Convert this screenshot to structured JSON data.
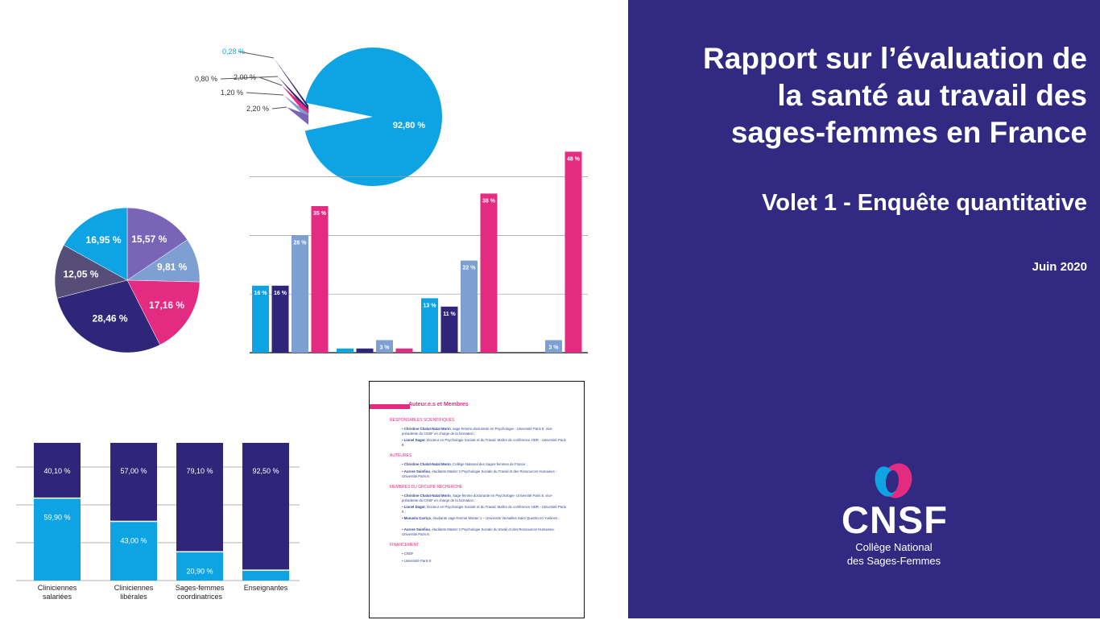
{
  "cover": {
    "title_lines": [
      "Rapport sur l’évaluation de",
      "la santé au travail des",
      "sages-femmes en France"
    ],
    "subtitle": "Volet 1 - Enquête quantitative",
    "date": "Juin 2020"
  },
  "logo": {
    "acronym": "CNSF",
    "name_line1": "Collège National",
    "name_line2": "des Sages-Femmes"
  },
  "colors": {
    "cover_bg": "#322983",
    "cyan": "#0ea4e4",
    "navy": "#2f2679",
    "light_blue": "#7d9fd2",
    "pink": "#e32b82",
    "purple": "#7a64b8",
    "slate": "#574e78"
  },
  "chart_data": [
    {
      "type": "pie",
      "labels": [
        "92,80 %",
        "0,28 %",
        "0,80 %",
        "2,00 %",
        "1,20 %",
        "2,20 %"
      ],
      "values": [
        92.8,
        0.28,
        0.8,
        2.0,
        1.2,
        2.2
      ]
    },
    {
      "type": "pie",
      "labels": [
        "15,57 %",
        "9,81 %",
        "17,16 %",
        "28,46 %",
        "12,05 %",
        "16,95 %"
      ],
      "values": [
        15.57,
        9.81,
        17.16,
        28.46,
        12.05,
        16.95
      ]
    },
    {
      "type": "bar",
      "groups": 4,
      "series": [
        {
          "values": [
            16,
            1,
            13,
            null
          ],
          "labels": [
            "16 %",
            "1 %",
            "13 %",
            ""
          ]
        },
        {
          "values": [
            16,
            1,
            11,
            null
          ],
          "labels": [
            "16 %",
            "1 %",
            "11 %",
            ""
          ]
        },
        {
          "values": [
            28,
            3,
            22,
            3
          ],
          "labels": [
            "28 %",
            "3 %",
            "22 %",
            "3 %"
          ]
        },
        {
          "values": [
            35,
            1,
            38,
            48
          ],
          "labels": [
            "35 %",
            "1 %",
            "38 %",
            "48 %"
          ]
        }
      ],
      "ylim": [
        0,
        50
      ]
    },
    {
      "type": "bar",
      "stacked": true,
      "categories": [
        [
          "Cliniciennes",
          "salariées"
        ],
        [
          "Cliniciennes",
          "libérales"
        ],
        [
          "Sages-femmes",
          "coordinatrices"
        ],
        [
          "Enseignantes"
        ]
      ],
      "series": [
        {
          "values": [
            59.9,
            43.0,
            20.9,
            7.5
          ],
          "labels": [
            "59,90 %",
            "43,00 %",
            "20,90 %",
            "7,50 %"
          ]
        },
        {
          "values": [
            40.1,
            57.0,
            79.1,
            92.5
          ],
          "labels": [
            "40,10 %",
            "57,00 %",
            "79,10 %",
            "92,50 %"
          ]
        }
      ]
    }
  ],
  "document": {
    "heading": "Auteur.e.s et Membres",
    "sections": [
      {
        "title": "Responsables scientifiques",
        "items": [
          [
            "Christine Chalut-Natal Morin",
            ", sage-femme doctorante en Psychologie - Université Paris 8, vice-présidente du CNSF en charge de la formation ;"
          ],
          [
            "Lionel Dagot",
            ", Docteur en Psychologie Sociale et du Travail, Maître de conférence HDR - Université Paris 8."
          ]
        ]
      },
      {
        "title": "Auteures",
        "items": [
          [
            "Christine Chalut-Natal Morin",
            ", Collège National des Sages-femmes de France ;"
          ],
          [
            "Aurore Sainfiou",
            ", étudiante Master 2 Psychologie Sociale du Travail et des Ressources Humaines - Université Paris 8."
          ]
        ]
      },
      {
        "title": "Membres du groupe recherche",
        "items": [
          [
            "Christine Chalut-Natal Morin",
            ", Sage-femme doctorante en Psychologie- Université Paris 8, vice-présidente du CNSF en charge de la formation ;"
          ],
          [
            "Lionel Dagot",
            ", Docteur en Psychologie Sociale et du Travail, Maître de conférence HDR - Université Paris 8 ;"
          ],
          [
            "Manuela Carriço",
            ", étudiante sage-femme Master 1 – Université Versailles Saint Quentin en Yvelines ;"
          ],
          [
            "Aurore Sainfiou",
            ", étudiante Master 2 Psychologie    Sociale du travail et des Ressources Humaines- Université Paris 8."
          ]
        ]
      },
      {
        "title": "Financement",
        "items": [
          [
            "",
            "CNSF"
          ],
          [
            "",
            "Université Paris 8"
          ]
        ]
      }
    ]
  }
}
